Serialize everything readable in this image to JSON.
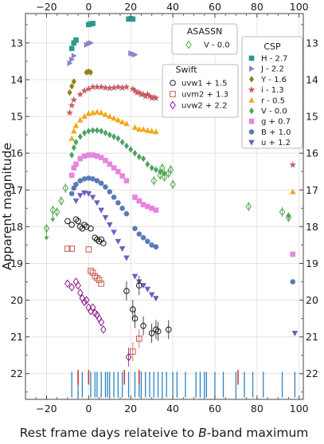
{
  "chart_data": {
    "type": "scatter",
    "xlabel_prefix": "Rest frame days relateive to ",
    "xlabel_italic": "B",
    "xlabel_suffix": "-band maximum",
    "ylabel": "Apparent magnitude",
    "xlim": [
      -30,
      102
    ],
    "ylim": [
      22.7,
      12.2
    ],
    "y_inverted": true,
    "xticks": [
      -20,
      0,
      20,
      40,
      60,
      80,
      100
    ],
    "yticks": [
      13,
      14,
      15,
      16,
      17,
      18,
      19,
      20,
      21,
      22
    ],
    "grid": true,
    "legends": {
      "asassn": {
        "title": "ASASSN",
        "placement": "top-right",
        "entries": [
          "V - 0.0"
        ]
      },
      "swift": {
        "title": "Swift",
        "placement": "upper-center-right",
        "entries": [
          "uvw1 + 1.5",
          "uvm2 + 1.3",
          "uvw2 + 2.2"
        ]
      },
      "csp": {
        "title": "CSP",
        "placement": "right",
        "entries": [
          "H - 2.7",
          "J - 2.2",
          "Y - 1.6",
          "i - 1.3",
          "r - 0.5",
          "V - 0.0",
          "g + 0.7",
          "B + 1.0",
          "u + 1.2"
        ]
      }
    },
    "series": [
      {
        "name": "H - 2.7",
        "survey": "CSP",
        "marker": "square",
        "color": "#2a9a8c",
        "x": [
          -8,
          -7,
          -6,
          0,
          1,
          2,
          19,
          20,
          21
        ],
        "y": [
          13.15,
          13.0,
          12.92,
          12.5,
          12.48,
          12.47,
          12.35,
          12.34,
          12.35
        ]
      },
      {
        "name": "J - 2.2",
        "survey": "CSP",
        "marker": "triangle-right",
        "color": "#8a84c8",
        "x": [
          -9,
          -8,
          -7,
          -1,
          0,
          1,
          20,
          21,
          22
        ],
        "y": [
          13.55,
          13.45,
          13.35,
          13.05,
          13.02,
          13.0,
          13.28,
          13.3,
          13.32
        ]
      },
      {
        "name": "Y - 1.6",
        "survey": "CSP",
        "marker": "diamond",
        "color": "#8d8515",
        "x": [
          -9,
          -8,
          -7,
          -1,
          0,
          1
        ],
        "y": [
          14.35,
          14.18,
          14.05,
          13.8,
          13.78,
          13.8
        ]
      },
      {
        "name": "i - 1.3",
        "survey": "CSP",
        "marker": "star",
        "color": "#c85c64",
        "x": [
          -9,
          -8,
          -7,
          -4,
          -2,
          0,
          2,
          4,
          6,
          8,
          10,
          12,
          14,
          16,
          18,
          21,
          22,
          23,
          24,
          25,
          26,
          27,
          28,
          29,
          30,
          31,
          32,
          97
        ],
        "y": [
          14.9,
          14.7,
          14.55,
          14.4,
          14.3,
          14.25,
          14.2,
          14.2,
          14.2,
          14.22,
          14.23,
          14.22,
          14.2,
          14.22,
          14.2,
          14.25,
          14.3,
          14.35,
          14.35,
          14.4,
          14.4,
          14.45,
          14.4,
          14.45,
          14.5,
          14.48,
          14.5,
          16.32
        ]
      },
      {
        "name": "r - 0.5",
        "survey": "CSP",
        "marker": "triangle-up",
        "color": "#f2a81d",
        "x": [
          -8,
          -7,
          -6,
          -4,
          -2,
          0,
          2,
          4,
          6,
          8,
          10,
          12,
          14,
          16,
          18,
          22,
          24,
          26,
          28,
          30,
          32,
          97
        ],
        "y": [
          15.6,
          15.4,
          15.25,
          15.1,
          15.0,
          14.92,
          14.9,
          14.88,
          14.9,
          14.95,
          15.0,
          15.05,
          15.1,
          15.15,
          15.2,
          15.3,
          15.35,
          15.35,
          15.38,
          15.4,
          15.42,
          17.05
        ]
      },
      {
        "name": "V - 0.0",
        "survey": "CSP",
        "marker": "diamond",
        "color": "#4ea265",
        "x": [
          -8,
          -7,
          -6,
          -4,
          -2,
          0,
          2,
          4,
          6,
          8,
          10,
          12,
          14,
          16,
          18,
          20,
          22,
          24,
          26,
          28,
          30,
          32,
          34,
          36,
          95
        ],
        "y": [
          16.05,
          15.85,
          15.7,
          15.55,
          15.45,
          15.4,
          15.38,
          15.38,
          15.4,
          15.45,
          15.5,
          15.55,
          15.6,
          15.7,
          15.8,
          15.9,
          16.0,
          16.1,
          16.15,
          16.3,
          16.4,
          16.45,
          16.5,
          16.55,
          17.7
        ]
      },
      {
        "name": "g + 0.7",
        "survey": "CSP",
        "marker": "square",
        "color": "#ea84e2",
        "x": [
          -8,
          -7,
          -6,
          -4,
          -2,
          0,
          2,
          4,
          6,
          8,
          10,
          12,
          14,
          16,
          18,
          22,
          24,
          26,
          28,
          30,
          32,
          97
        ],
        "y": [
          16.6,
          16.4,
          16.3,
          16.15,
          16.08,
          16.05,
          16.05,
          16.08,
          16.12,
          16.2,
          16.3,
          16.4,
          16.5,
          16.62,
          16.75,
          17.2,
          17.3,
          17.4,
          17.45,
          17.5,
          17.55,
          18.75
        ]
      },
      {
        "name": "B + 1.0",
        "survey": "CSP",
        "marker": "circle",
        "color": "#5a7ab8",
        "x": [
          -8,
          -7,
          -6,
          -4,
          -2,
          0,
          2,
          4,
          6,
          8,
          10,
          12,
          14,
          16,
          18,
          22,
          24,
          26,
          28,
          30,
          32,
          97
        ],
        "y": [
          17.1,
          16.95,
          16.85,
          16.75,
          16.7,
          16.68,
          16.7,
          16.75,
          16.82,
          16.92,
          17.05,
          17.2,
          17.35,
          17.5,
          17.65,
          18.05,
          18.2,
          18.3,
          18.4,
          18.5,
          18.55,
          19.5
        ]
      },
      {
        "name": "u + 1.2",
        "survey": "CSP",
        "marker": "triangle-down",
        "color": "#6a5fc2",
        "x": [
          -6,
          -4,
          -2,
          0,
          2,
          4,
          6,
          8,
          10,
          12,
          14,
          16,
          18,
          22,
          24,
          26,
          28,
          30,
          32,
          98
        ],
        "y": [
          17.3,
          17.15,
          17.08,
          17.1,
          17.2,
          17.35,
          17.55,
          17.75,
          17.95,
          18.15,
          18.4,
          18.6,
          18.85,
          19.35,
          19.5,
          19.6,
          19.7,
          19.85,
          19.95,
          20.9
        ]
      },
      {
        "name": "uvw1 + 1.5",
        "survey": "Swift",
        "marker": "open-circle",
        "color": "#1a1a1a",
        "x": [
          -10,
          -8,
          -6,
          -5,
          -4,
          -3,
          -2,
          -1,
          1,
          3,
          4,
          5,
          6,
          7,
          18,
          21,
          22,
          24,
          26,
          30,
          32,
          33,
          38
        ],
        "y": [
          17.85,
          17.95,
          17.8,
          17.85,
          18.0,
          18.05,
          17.95,
          18.0,
          18.05,
          18.3,
          18.35,
          18.4,
          18.35,
          18.45,
          19.75,
          20.25,
          20.5,
          19.6,
          20.7,
          20.9,
          20.8,
          20.85,
          20.8
        ]
      },
      {
        "name": "uvm2 + 1.3",
        "survey": "Swift",
        "marker": "open-square",
        "color": "#c65c50",
        "x": [
          -10,
          -8,
          0,
          1,
          2,
          3,
          4,
          5,
          6,
          21,
          24
        ],
        "y": [
          18.6,
          18.6,
          18.62,
          19.2,
          19.25,
          19.35,
          19.4,
          19.45,
          19.55,
          21.4,
          21.05
        ]
      },
      {
        "name": "uvw2 + 2.2",
        "survey": "Swift",
        "marker": "open-diamond",
        "color": "#8a1a8a",
        "x": [
          -10,
          -8,
          -6,
          -5,
          -4,
          -3,
          -2,
          -1,
          0,
          1,
          2,
          3,
          4,
          5,
          6,
          7,
          19
        ],
        "y": [
          19.55,
          19.65,
          19.5,
          19.6,
          19.8,
          19.95,
          20.05,
          20.0,
          20.2,
          20.3,
          20.2,
          20.35,
          20.4,
          20.5,
          20.6,
          20.8,
          21.55
        ]
      },
      {
        "name": "V - 0.0",
        "survey": "ASASSN",
        "marker": "open-diamond",
        "color": "#55a84f",
        "x": [
          -20,
          -17,
          -15,
          -13,
          -11,
          31,
          34,
          35,
          36,
          38,
          39,
          40,
          76,
          92,
          95
        ],
        "y": [
          18.05,
          17.55,
          17.6,
          17.3,
          16.95,
          16.75,
          16.6,
          16.4,
          16.65,
          16.55,
          16.45,
          16.85,
          17.45,
          17.6,
          17.75
        ]
      }
    ],
    "upper_limits": {
      "x": [
        -20,
        -17
      ],
      "y": [
        18.05,
        17.55
      ],
      "color": "#55a84f"
    },
    "spectra_epochs": {
      "blue": [
        -8,
        -5,
        -3,
        1,
        3,
        4,
        6,
        8,
        9,
        10,
        12,
        14,
        16,
        19,
        22,
        24,
        25,
        27,
        29,
        31,
        33,
        35,
        37,
        40,
        42,
        46,
        51,
        53,
        55,
        56,
        60,
        64,
        70,
        74,
        78,
        83,
        92,
        98
      ],
      "red": [
        -5,
        0,
        17,
        24,
        71
      ]
    }
  }
}
